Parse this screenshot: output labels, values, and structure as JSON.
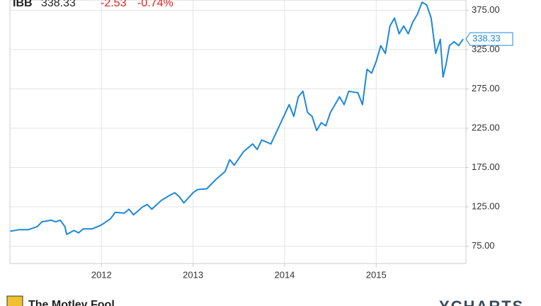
{
  "header": {
    "symbol": "IBB",
    "price": "338.33",
    "change": "-2.53",
    "change_pct": "-0.74%"
  },
  "footer": {
    "brand": "The Motley Fool",
    "source": "YCHARTS"
  },
  "chart_data": {
    "type": "line",
    "color": "#1e88d8",
    "grid": true,
    "x": [
      2011.0,
      2011.1,
      2011.2,
      2011.3,
      2011.35,
      2011.45,
      2011.5,
      2011.55,
      2011.6,
      2011.62,
      2011.7,
      2011.75,
      2011.8,
      2011.9,
      2012.0,
      2012.1,
      2012.15,
      2012.25,
      2012.3,
      2012.35,
      2012.45,
      2012.5,
      2012.55,
      2012.65,
      2012.75,
      2012.8,
      2012.85,
      2012.9,
      2013.0,
      2013.05,
      2013.15,
      2013.25,
      2013.35,
      2013.4,
      2013.45,
      2013.55,
      2013.65,
      2013.7,
      2013.75,
      2013.85,
      2013.95,
      2014.05,
      2014.1,
      2014.15,
      2014.2,
      2014.25,
      2014.3,
      2014.35,
      2014.4,
      2014.45,
      2014.5,
      2014.55,
      2014.6,
      2014.65,
      2014.7,
      2014.8,
      2014.85,
      2014.9,
      2014.95,
      2015.0,
      2015.05,
      2015.1,
      2015.15,
      2015.2,
      2015.25,
      2015.3,
      2015.35,
      2015.4,
      2015.45,
      2015.5,
      2015.55,
      2015.6,
      2015.65,
      2015.7,
      2015.73,
      2015.76,
      2015.8,
      2015.85,
      2015.9,
      2015.95
    ],
    "values": [
      94,
      96,
      96,
      100,
      106,
      108,
      106,
      108,
      100,
      90,
      95,
      92,
      97,
      97,
      102,
      110,
      118,
      117,
      122,
      115,
      125,
      128,
      122,
      133,
      140,
      143,
      138,
      130,
      143,
      147,
      148,
      160,
      170,
      185,
      178,
      195,
      205,
      198,
      210,
      205,
      230,
      255,
      240,
      265,
      272,
      245,
      240,
      222,
      232,
      228,
      245,
      255,
      265,
      255,
      272,
      270,
      255,
      300,
      295,
      310,
      330,
      320,
      355,
      365,
      345,
      355,
      345,
      360,
      370,
      385,
      382,
      365,
      320,
      338,
      290,
      305,
      330,
      335,
      330,
      338.33
    ],
    "xlim": [
      2011.0,
      2015.98
    ],
    "xticks": [
      2012,
      2013,
      2014,
      2015
    ],
    "ylim": [
      53,
      388
    ],
    "yticks": [
      {
        "value": 75,
        "label": "75.00"
      },
      {
        "value": 125,
        "label": "125.00"
      },
      {
        "value": 175,
        "label": "175.00"
      },
      {
        "value": 225,
        "label": "225.00"
      },
      {
        "value": 275,
        "label": "275.00"
      },
      {
        "value": 325,
        "label": "325.00"
      },
      {
        "value": 375,
        "label": "375.00"
      }
    ]
  }
}
